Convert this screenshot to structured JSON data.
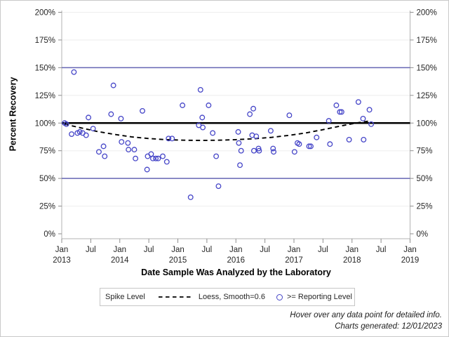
{
  "figure": {
    "bg": "#ffffff",
    "border_color": "#c9c9c9"
  },
  "axes": {
    "y_title": "Percent Recovery",
    "x_title": "Date Sample Was Analyzed by the Laboratory"
  },
  "legend": {
    "title": "Spike Level",
    "items": [
      {
        "swatch": "dashed-line",
        "label": "Loess, Smooth=0.6",
        "color": "#000000"
      },
      {
        "swatch": "open-circle",
        "label": ">= Reporting Level",
        "color": "#4646c8"
      }
    ]
  },
  "footnotes": {
    "line1": "Hover over any data point for detailed info.",
    "line2": "Charts generated: 12/01/2023"
  },
  "chart_data": {
    "type": "scatter",
    "title": "",
    "xlabel": "Date Sample Was Analyzed by the Laboratory",
    "ylabel": "Percent Recovery",
    "x_encoding": "decimal year (2013.0 = Jan 2013)",
    "xlim": [
      2013,
      2019
    ],
    "ylim": [
      0,
      200
    ],
    "grid": "horizontal",
    "y_ticks": [
      {
        "value": 0,
        "label": "0%"
      },
      {
        "value": 25,
        "label": "25%"
      },
      {
        "value": 50,
        "label": "50%"
      },
      {
        "value": 75,
        "label": "75%"
      },
      {
        "value": 100,
        "label": "100%"
      },
      {
        "value": 125,
        "label": "125%"
      },
      {
        "value": 150,
        "label": "150%"
      },
      {
        "value": 175,
        "label": "175%"
      },
      {
        "value": 200,
        "label": "200%"
      }
    ],
    "x_ticks": [
      {
        "x": 2013.0,
        "month": "Jan",
        "year": "2013"
      },
      {
        "x": 2013.5,
        "month": "Jul",
        "year": ""
      },
      {
        "x": 2014.0,
        "month": "Jan",
        "year": "2014"
      },
      {
        "x": 2014.5,
        "month": "Jul",
        "year": ""
      },
      {
        "x": 2015.0,
        "month": "Jan",
        "year": "2015"
      },
      {
        "x": 2015.5,
        "month": "Jul",
        "year": ""
      },
      {
        "x": 2016.0,
        "month": "Jan",
        "year": "2016"
      },
      {
        "x": 2016.5,
        "month": "Jul",
        "year": ""
      },
      {
        "x": 2017.0,
        "month": "Jan",
        "year": "2017"
      },
      {
        "x": 2017.5,
        "month": "Jul",
        "year": ""
      },
      {
        "x": 2018.0,
        "month": "Jan",
        "year": "2018"
      },
      {
        "x": 2018.5,
        "month": "Jul",
        "year": ""
      },
      {
        "x": 2019.0,
        "month": "Jan",
        "year": "2019"
      }
    ],
    "reference_lines": [
      {
        "y": 50,
        "name": "lower-limit",
        "color": "#6666b3",
        "width": 1.5
      },
      {
        "y": 150,
        "name": "upper-limit",
        "color": "#6666b3",
        "width": 1.5
      },
      {
        "y": 100,
        "name": "Spike Level",
        "color": "#000000",
        "width": 2.4
      }
    ],
    "series": [
      {
        "name": ">= Reporting Level",
        "type": "scatter",
        "marker": "open-circle",
        "color": "#4646c8",
        "points": [
          [
            2013.05,
            100
          ],
          [
            2013.08,
            99
          ],
          [
            2013.17,
            90
          ],
          [
            2013.21,
            146
          ],
          [
            2013.27,
            91
          ],
          [
            2013.31,
            92
          ],
          [
            2013.36,
            91
          ],
          [
            2013.42,
            89
          ],
          [
            2013.46,
            105
          ],
          [
            2013.54,
            95
          ],
          [
            2013.64,
            74
          ],
          [
            2013.72,
            79
          ],
          [
            2013.74,
            70
          ],
          [
            2013.85,
            108
          ],
          [
            2013.89,
            134
          ],
          [
            2014.02,
            104
          ],
          [
            2014.03,
            83
          ],
          [
            2014.14,
            82
          ],
          [
            2014.15,
            76
          ],
          [
            2014.25,
            76
          ],
          [
            2014.27,
            68
          ],
          [
            2014.39,
            111
          ],
          [
            2014.47,
            58
          ],
          [
            2014.48,
            70
          ],
          [
            2014.54,
            72
          ],
          [
            2014.57,
            68
          ],
          [
            2014.62,
            68
          ],
          [
            2014.66,
            68
          ],
          [
            2014.74,
            70
          ],
          [
            2014.81,
            65
          ],
          [
            2014.84,
            86
          ],
          [
            2014.9,
            86
          ],
          [
            2015.08,
            116
          ],
          [
            2015.22,
            33
          ],
          [
            2015.36,
            98
          ],
          [
            2015.39,
            130
          ],
          [
            2015.42,
            105
          ],
          [
            2015.43,
            96
          ],
          [
            2015.53,
            116
          ],
          [
            2015.6,
            91
          ],
          [
            2015.66,
            70
          ],
          [
            2015.7,
            43
          ],
          [
            2016.04,
            92
          ],
          [
            2016.05,
            82
          ],
          [
            2016.07,
            62
          ],
          [
            2016.09,
            75
          ],
          [
            2016.24,
            108
          ],
          [
            2016.28,
            89
          ],
          [
            2016.3,
            113
          ],
          [
            2016.31,
            75
          ],
          [
            2016.35,
            88
          ],
          [
            2016.39,
            77
          ],
          [
            2016.4,
            75
          ],
          [
            2016.6,
            93
          ],
          [
            2016.64,
            77
          ],
          [
            2016.65,
            74
          ],
          [
            2016.92,
            107
          ],
          [
            2017.01,
            74
          ],
          [
            2017.06,
            82
          ],
          [
            2017.09,
            81
          ],
          [
            2017.26,
            79
          ],
          [
            2017.29,
            79
          ],
          [
            2017.39,
            87
          ],
          [
            2017.6,
            102
          ],
          [
            2017.62,
            81
          ],
          [
            2017.73,
            116
          ],
          [
            2017.79,
            110
          ],
          [
            2017.82,
            110
          ],
          [
            2017.95,
            85
          ],
          [
            2018.11,
            119
          ],
          [
            2018.19,
            104
          ],
          [
            2018.2,
            85
          ],
          [
            2018.3,
            112
          ],
          [
            2018.33,
            99
          ]
        ]
      },
      {
        "name": "Loess, Smooth=0.6",
        "type": "line",
        "style": "dashed",
        "color": "#000000",
        "points": [
          [
            2013.05,
            99
          ],
          [
            2013.3,
            96
          ],
          [
            2013.6,
            92.5
          ],
          [
            2013.9,
            89.8
          ],
          [
            2014.2,
            87.5
          ],
          [
            2014.5,
            86
          ],
          [
            2014.8,
            85
          ],
          [
            2015.1,
            84.5
          ],
          [
            2015.4,
            84.3
          ],
          [
            2015.7,
            84.5
          ],
          [
            2016.0,
            85
          ],
          [
            2016.3,
            85.8
          ],
          [
            2016.6,
            87
          ],
          [
            2016.9,
            88.8
          ],
          [
            2017.2,
            91
          ],
          [
            2017.5,
            94
          ],
          [
            2017.8,
            97.3
          ],
          [
            2018.1,
            100.3
          ],
          [
            2018.33,
            102
          ]
        ]
      }
    ],
    "style": {
      "marker_color": "#4646c8",
      "grid_color": "#ededed",
      "frame_color": "#b3b3b3",
      "tick_color": "#8e8e8e",
      "legend_position": "bottom-center"
    }
  }
}
